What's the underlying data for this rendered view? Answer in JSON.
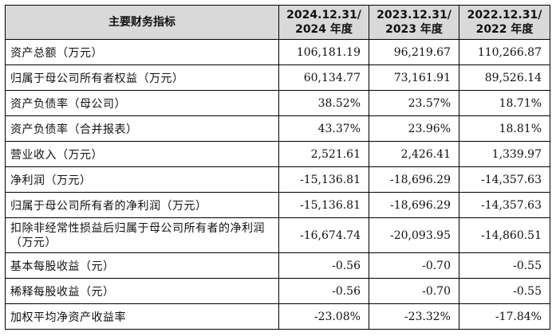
{
  "table": {
    "headers": {
      "metric": "主要财务指标",
      "col1_line1": "2024.12.31/",
      "col1_line2": "2024 年度",
      "col2_line1": "2023.12.31/",
      "col2_line2": "2023 年度",
      "col3_line1": "2022.12.31/",
      "col3_line2": "2022 年度"
    },
    "rows": [
      {
        "label": "资产总额（万元）",
        "v2024": "106,181.19",
        "v2023": "96,219.67",
        "v2022": "110,266.87"
      },
      {
        "label": "归属于母公司所有者权益（万元）",
        "v2024": "60,134.77",
        "v2023": "73,161.91",
        "v2022": "89,526.14"
      },
      {
        "label": "资产负债率（母公司）",
        "v2024": "38.52%",
        "v2023": "23.57%",
        "v2022": "18.71%"
      },
      {
        "label": "资产负债率（合并报表）",
        "v2024": "43.37%",
        "v2023": "23.96%",
        "v2022": "18.81%"
      },
      {
        "label": "营业收入（万元）",
        "v2024": "2,521.61",
        "v2023": "2,426.41",
        "v2022": "1,339.97"
      },
      {
        "label": "净利润（万元）",
        "v2024": "-15,136.81",
        "v2023": "-18,696.29",
        "v2022": "-14,357.63"
      },
      {
        "label": "归属于母公司所有者的净利润（万元）",
        "v2024": "-15,136.81",
        "v2023": "-18,696.29",
        "v2022": "-14,357.63"
      },
      {
        "label": "扣除非经常性损益后归属于母公司所有者的净利润（万元）",
        "v2024": "-16,674.74",
        "v2023": "-20,093.95",
        "v2022": "-14,860.51"
      },
      {
        "label": "基本每股收益（元）",
        "v2024": "-0.56",
        "v2023": "-0.70",
        "v2022": "-0.55"
      },
      {
        "label": "稀释每股收益（元）",
        "v2024": "-0.56",
        "v2023": "-0.70",
        "v2022": "-0.55"
      },
      {
        "label": "加权平均净资产收益率",
        "v2024": "-23.08%",
        "v2023": "-23.32%",
        "v2022": "-17.84%"
      }
    ]
  }
}
